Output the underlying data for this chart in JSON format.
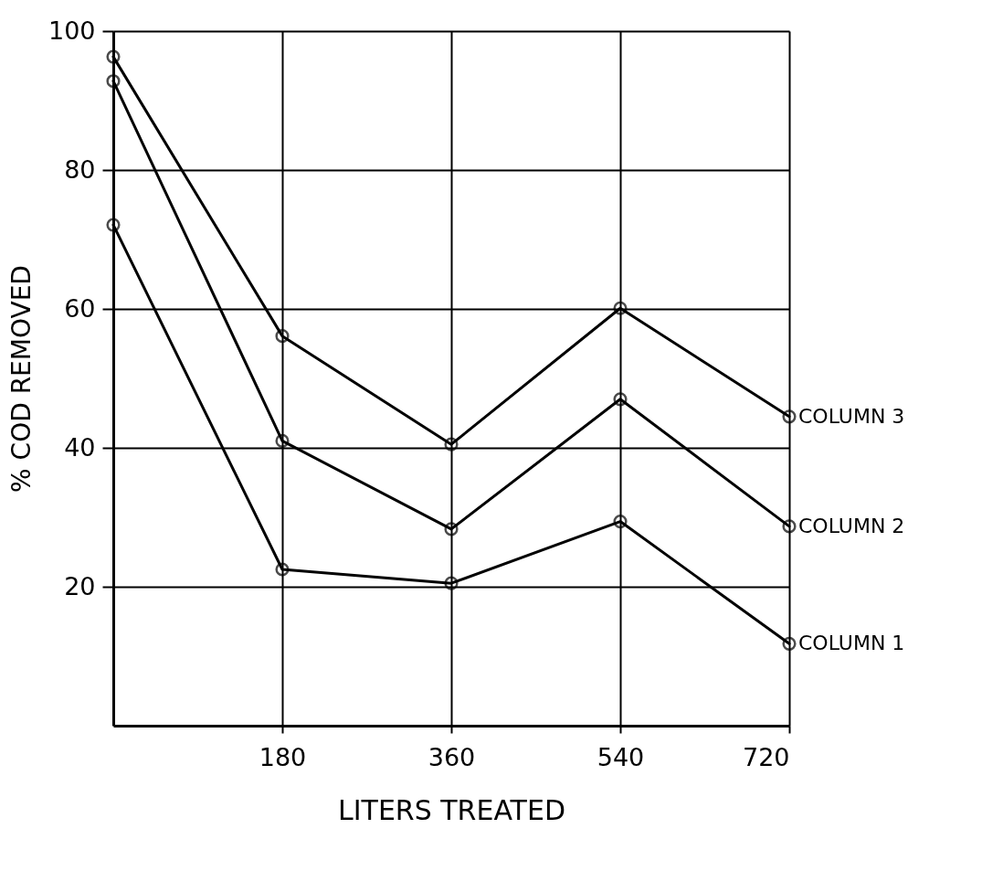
{
  "chart_data": {
    "type": "line",
    "xlabel": "LITERS TREATED",
    "ylabel": "% COD REMOVED",
    "x": [
      0,
      180,
      360,
      540,
      720
    ],
    "series": [
      {
        "name": "COLUMN 1",
        "color": "#000000",
        "values": [
          72.1,
          22.5,
          20.5,
          29.4,
          11.8
        ]
      },
      {
        "name": "COLUMN 2",
        "color": "#000000",
        "values": [
          92.8,
          41.0,
          28.3,
          47.0,
          28.7
        ]
      },
      {
        "name": "COLUMN 3",
        "color": "#000000",
        "values": [
          96.3,
          56.1,
          40.5,
          60.1,
          44.5
        ]
      }
    ],
    "xlim": [
      0,
      720
    ],
    "xticks": [
      180,
      360,
      540,
      720
    ],
    "ylim": [
      0,
      100
    ],
    "yticks": [
      20,
      40,
      60,
      80,
      100
    ],
    "grid": true,
    "legend": false,
    "marker": "circle",
    "line_style": "solid"
  }
}
